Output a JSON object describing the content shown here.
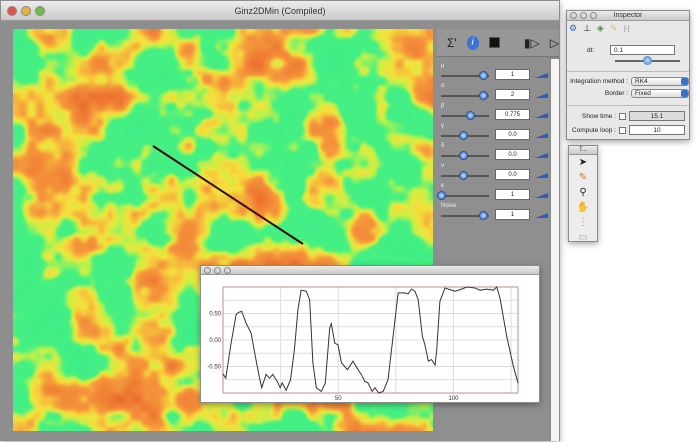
{
  "main_window": {
    "title": "Ginz2DMin (Compiled)"
  },
  "toolbar": {
    "icons": [
      "sigma-icon",
      "info-icon",
      "terminal-icon",
      "step-icon",
      "play-icon"
    ],
    "sigma_label": "Σ'"
  },
  "params": [
    {
      "label": "μ",
      "value": "1",
      "slider": 0.95
    },
    {
      "label": "α",
      "value": "2",
      "slider": 0.95
    },
    {
      "label": "β",
      "value": "0.775",
      "slider": 0.65
    },
    {
      "label": "γ",
      "value": "0.0",
      "slider": 0.5
    },
    {
      "label": "δ",
      "value": "0.0",
      "slider": 0.5
    },
    {
      "label": "ν",
      "value": "0.0",
      "slider": 0.5
    },
    {
      "label": "κ",
      "value": "1",
      "slider": 0.0
    },
    {
      "label": "Noise",
      "value": "1",
      "slider": 0.95
    }
  ],
  "plot": {
    "chart_data": {
      "type": "line",
      "xlim": [
        0,
        128
      ],
      "ylim": [
        -1,
        1
      ],
      "xticks": [
        "50",
        "100"
      ],
      "xtick_values": [
        50,
        100
      ],
      "yticks": [
        "0.50",
        "0.00",
        "-0.50"
      ],
      "ytick_values": [
        0.5,
        0,
        -0.5
      ],
      "grid": true,
      "line_color": "#333333",
      "frame_color": "#c98a8a",
      "x": [
        0,
        1.2,
        3.5,
        5.7,
        6.7,
        8.1,
        10,
        12.2,
        13.9,
        15.4,
        16.8,
        18.7,
        20.2,
        21.6,
        23.5,
        24.8,
        25.7,
        27.4,
        29.3,
        31,
        32.5,
        33.9,
        36.1,
        37.6,
        39,
        40.5,
        42.6,
        44.4,
        46.3,
        47,
        48.5,
        49.9,
        51.4,
        52.8,
        54,
        56.4,
        58.6,
        60,
        61.5,
        62.9,
        64.7,
        65.9,
        67.6,
        69.5,
        71.6,
        73.8,
        76,
        78.9,
        80.3,
        81.8,
        83.3,
        84.7,
        86.5,
        87.6,
        89.1,
        90.5,
        92,
        92.7,
        94.1,
        96.3,
        98.5,
        100.7,
        102.9,
        105.8,
        109.3,
        111.5,
        114.4,
        117.3,
        118.8,
        120.2,
        123.1,
        126,
        128
      ],
      "y": [
        -0.64,
        -0.72,
        -0.06,
        0.48,
        0.52,
        0.54,
        0.32,
        0.13,
        -0.28,
        -0.62,
        -0.9,
        -0.65,
        -0.72,
        -0.65,
        -0.78,
        -0.9,
        -0.81,
        -0.95,
        -0.75,
        -0.18,
        0.57,
        0.94,
        0.92,
        0.76,
        -0.43,
        -0.9,
        -0.97,
        -0.81,
        0.23,
        0.31,
        -0.06,
        -0.09,
        -0.43,
        -0.5,
        -0.56,
        -0.4,
        -0.56,
        -0.65,
        -0.78,
        -0.81,
        -0.97,
        -0.9,
        -1.0,
        -0.97,
        -0.75,
        0.07,
        0.89,
        0.89,
        0.87,
        0.96,
        0.92,
        0.76,
        0.07,
        -0.09,
        -0.4,
        -0.37,
        -0.47,
        -0.21,
        0.73,
        0.98,
        0.95,
        0.92,
        0.95,
        1.0,
        0.98,
        0.94,
        0.96,
        0.94,
        1.0,
        0.79,
        0.07,
        -0.5,
        -0.81
      ]
    }
  },
  "inspector": {
    "title": "Inspector",
    "tabs": [
      "settings-icon",
      "axes-icon",
      "objects-icon",
      "pencil-icon",
      "H"
    ],
    "dt_label": "dt:",
    "dt_value": "0.1",
    "dt_slider": 0.5,
    "integration_label": "Integration method :",
    "integration_value": "RK4",
    "border_label": "Border :",
    "border_value": "Fixed",
    "show_time_label": "Show time :",
    "show_time_value": "15.1",
    "compute_loop_label": "Compute loop :",
    "compute_loop_value": "10"
  },
  "tools": {
    "title": "T...",
    "items": [
      "arrow-icon",
      "pencil-icon",
      "zoom-icon",
      "hand-icon",
      "line-icon",
      "rect-icon"
    ]
  },
  "colors": {
    "green": "#3ef08a",
    "yellow": "#f0f040",
    "orange": "#f5903a",
    "red": "#e85a30"
  }
}
